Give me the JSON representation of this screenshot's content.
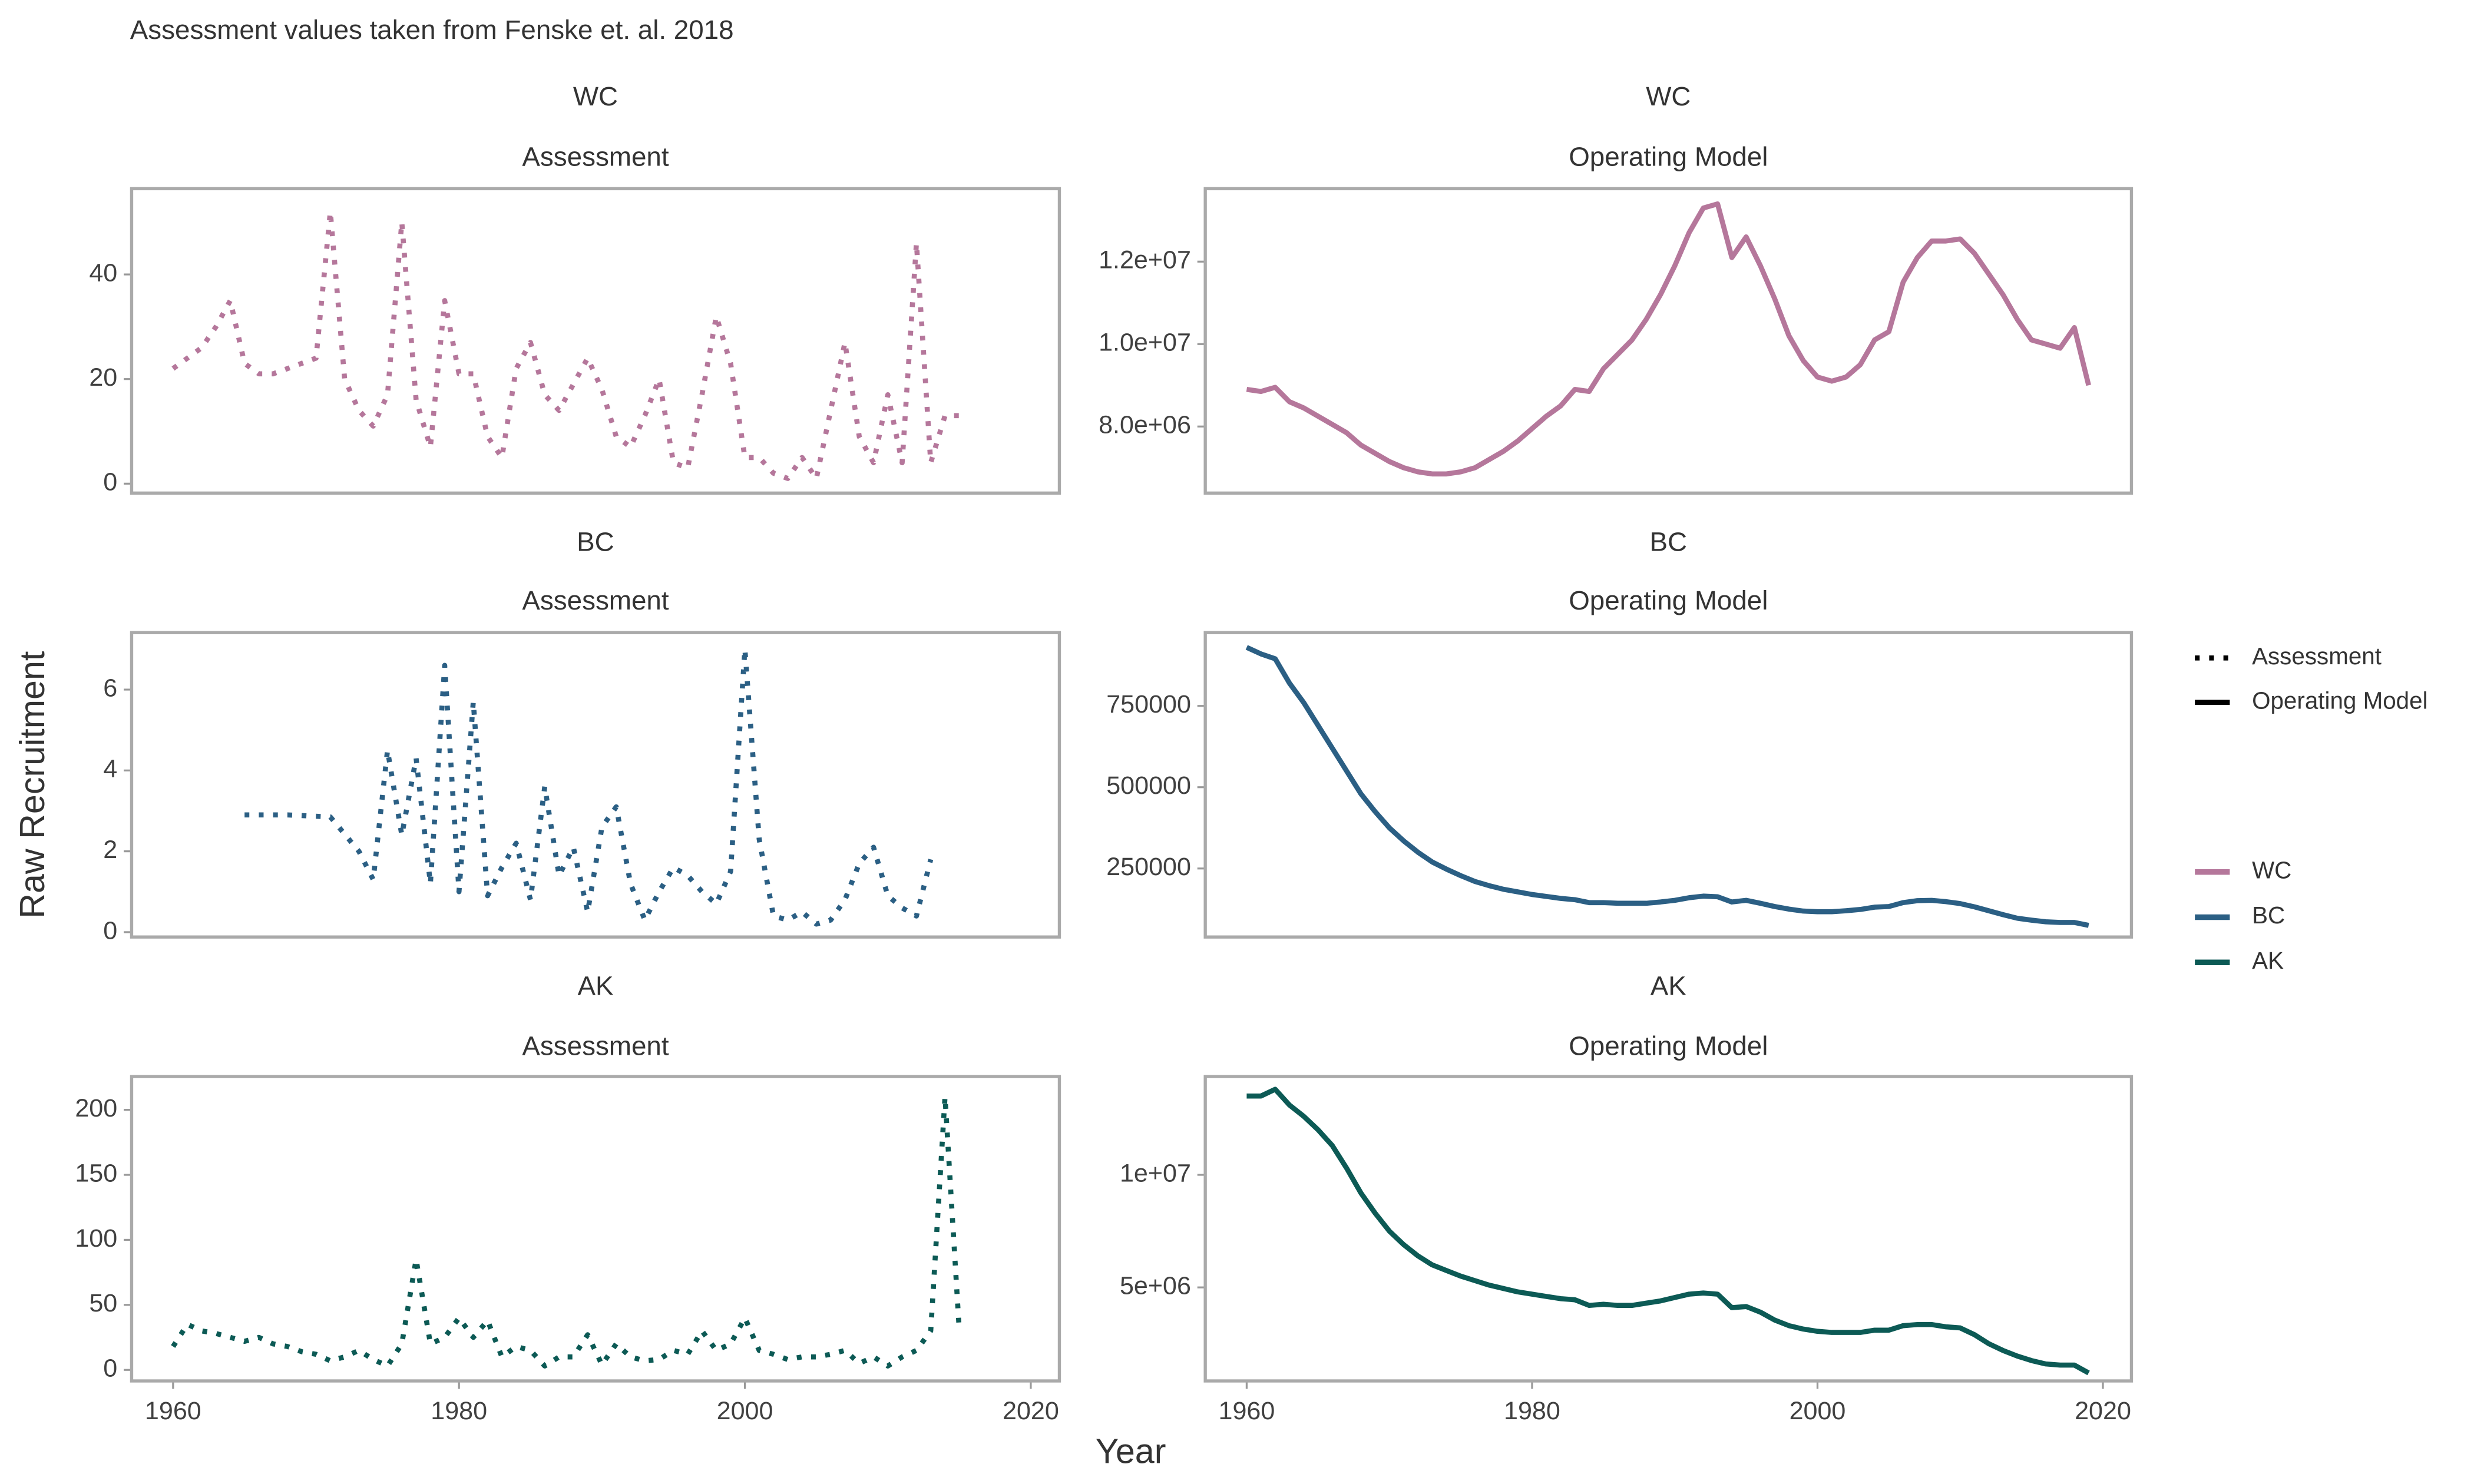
{
  "caption": "Assessment values taken from Fenske et. al. 2018",
  "xlabel": "Year",
  "ylabel": "Raw Recruitment",
  "legend": {
    "linetypes": [
      {
        "name": "Assessment",
        "linestyle": "dotted"
      },
      {
        "name": "Operating Model",
        "linestyle": "solid"
      }
    ],
    "colors": [
      {
        "name": "WC",
        "color": "#b5779b"
      },
      {
        "name": "BC",
        "color": "#2b5f84"
      },
      {
        "name": "AK",
        "color": "#0c5a55"
      }
    ]
  },
  "chart_data": [
    {
      "type": "line",
      "title": "WC",
      "subtitle": "Assessment",
      "linestyle": "dotted",
      "color": "#b5779b",
      "x": [
        1960,
        1961,
        1962,
        1963,
        1964,
        1965,
        1966,
        1967,
        1968,
        1969,
        1970,
        1971,
        1972,
        1973,
        1974,
        1975,
        1976,
        1977,
        1978,
        1979,
        1980,
        1981,
        1982,
        1983,
        1984,
        1985,
        1986,
        1987,
        1988,
        1989,
        1990,
        1991,
        1992,
        1993,
        1994,
        1995,
        1996,
        1997,
        1998,
        1999,
        2000,
        2001,
        2002,
        2003,
        2004,
        2005,
        2006,
        2007,
        2008,
        2009,
        2010,
        2011,
        2012,
        2013,
        2014,
        2015
      ],
      "values": [
        22,
        24,
        26,
        30,
        35,
        23,
        21,
        21,
        22,
        23,
        24,
        52,
        20,
        14,
        11,
        17,
        50,
        16,
        7,
        35,
        21,
        21,
        9,
        5,
        22,
        27,
        17,
        14,
        19,
        24,
        18,
        9,
        7,
        13,
        20,
        4,
        3,
        17,
        32,
        23,
        5,
        5,
        2,
        1,
        5,
        1,
        14,
        27,
        9,
        4,
        17,
        4,
        46,
        4,
        13,
        13
      ],
      "xlim": [
        1957.1,
        2022
      ],
      "ylim": [
        -1.8,
        56.4
      ],
      "yticks": [
        0,
        20,
        40
      ]
    },
    {
      "type": "line",
      "title": "WC",
      "subtitle": "Operating Model",
      "linestyle": "solid",
      "color": "#b5779b",
      "x": [
        1960,
        1961,
        1962,
        1963,
        1964,
        1965,
        1966,
        1967,
        1968,
        1969,
        1970,
        1971,
        1972,
        1973,
        1974,
        1975,
        1976,
        1977,
        1978,
        1979,
        1980,
        1981,
        1982,
        1983,
        1984,
        1985,
        1986,
        1987,
        1988,
        1989,
        1990,
        1991,
        1992,
        1993,
        1994,
        1995,
        1996,
        1997,
        1998,
        1999,
        2000,
        2001,
        2002,
        2003,
        2004,
        2005,
        2006,
        2007,
        2008,
        2009,
        2010,
        2011,
        2012,
        2013,
        2014,
        2015,
        2016,
        2017,
        2018,
        2019
      ],
      "values": [
        8900000,
        8850000,
        8950000,
        8600000,
        8450000,
        8250000,
        8050000,
        7850000,
        7550000,
        7350000,
        7150000,
        7000000,
        6900000,
        6850000,
        6850000,
        6900000,
        7000000,
        7200000,
        7400000,
        7650000,
        7950000,
        8250000,
        8500000,
        8900000,
        8850000,
        9400000,
        9750000,
        10100000,
        10600000,
        11200000,
        11900000,
        12700000,
        13300000,
        13400000,
        12100000,
        12600000,
        11900000,
        11100000,
        10200000,
        9600000,
        9200000,
        9100000,
        9200000,
        9500000,
        10100000,
        10300000,
        11500000,
        12100000,
        12500000,
        12500000,
        12550000,
        12200000,
        11700000,
        11200000,
        10600000,
        10100000,
        10000000,
        9900000,
        10400000,
        9000000
      ],
      "xlim": [
        1957.1,
        2022
      ],
      "ylim": [
        6385000,
        13770000
      ],
      "yticks": [
        {
          "value": 8000000,
          "label": "8.0e+06"
        },
        {
          "value": 10000000,
          "label": "1.0e+07"
        },
        {
          "value": 12000000,
          "label": "1.2e+07"
        }
      ]
    },
    {
      "type": "line",
      "title": "BC",
      "subtitle": "Assessment",
      "linestyle": "dotted",
      "color": "#2b5f84",
      "x": [
        1965,
        1968,
        1971,
        1973,
        1974,
        1975,
        1976,
        1977,
        1978,
        1979,
        1980,
        1981,
        1982,
        1983,
        1984,
        1985,
        1986,
        1987,
        1988,
        1989,
        1990,
        1991,
        1992,
        1993,
        1994,
        1995,
        1996,
        1997,
        1998,
        1999,
        2000,
        2001,
        2002,
        2003,
        2004,
        2005,
        2006,
        2007,
        2008,
        2009,
        2010,
        2011,
        2012,
        2013
      ],
      "values": [
        2.9,
        2.9,
        2.85,
        2.0,
        1.3,
        4.5,
        2.4,
        4.3,
        1.2,
        6.6,
        1.0,
        5.7,
        0.9,
        1.6,
        2.2,
        0.8,
        3.6,
        1.4,
        2.1,
        0.5,
        2.6,
        3.1,
        1.2,
        0.3,
        1.0,
        1.6,
        1.4,
        1.0,
        0.7,
        1.5,
        7.0,
        2.3,
        0.4,
        0.3,
        0.5,
        0.2,
        0.3,
        0.8,
        1.7,
        2.1,
        0.9,
        0.6,
        0.4,
        1.8
      ],
      "xlim": [
        1957.1,
        2022
      ],
      "ylim": [
        -0.12,
        7.41
      ],
      "yticks": [
        0,
        2,
        4,
        6
      ]
    },
    {
      "type": "line",
      "title": "BC",
      "subtitle": "Operating Model",
      "linestyle": "solid",
      "color": "#2b5f84",
      "x": [
        1960,
        1961,
        1962,
        1963,
        1964,
        1965,
        1966,
        1967,
        1968,
        1969,
        1970,
        1971,
        1972,
        1973,
        1974,
        1975,
        1976,
        1977,
        1978,
        1979,
        1980,
        1981,
        1982,
        1983,
        1984,
        1985,
        1986,
        1987,
        1988,
        1989,
        1990,
        1991,
        1992,
        1993,
        1994,
        1995,
        1996,
        1997,
        1998,
        1999,
        2000,
        2001,
        2002,
        2003,
        2004,
        2005,
        2006,
        2007,
        2008,
        2009,
        2010,
        2011,
        2012,
        2013,
        2014,
        2015,
        2016,
        2017,
        2018,
        2019
      ],
      "values": [
        930000,
        910000,
        895000,
        820000,
        760000,
        690000,
        620000,
        550000,
        480000,
        425000,
        375000,
        335000,
        300000,
        270000,
        248000,
        228000,
        210000,
        197000,
        186000,
        178000,
        170000,
        164000,
        158000,
        154000,
        145000,
        145000,
        143000,
        143000,
        143000,
        147000,
        152000,
        160000,
        165000,
        163000,
        147000,
        152000,
        143000,
        133000,
        125000,
        119000,
        117000,
        117000,
        120000,
        124000,
        131000,
        133000,
        145000,
        151000,
        152000,
        148000,
        142000,
        132000,
        120000,
        108000,
        97000,
        91000,
        86000,
        84000,
        84000,
        75000
      ],
      "xlim": [
        1957.1,
        2022
      ],
      "ylim": [
        39216,
        975490
      ],
      "yticks": [
        250000,
        500000,
        750000
      ]
    },
    {
      "type": "line",
      "title": "AK",
      "subtitle": "Assessment",
      "linestyle": "dotted",
      "color": "#0c5a55",
      "x": [
        1960,
        1961,
        1962,
        1963,
        1964,
        1965,
        1966,
        1967,
        1968,
        1969,
        1970,
        1971,
        1972,
        1973,
        1974,
        1975,
        1976,
        1977,
        1978,
        1979,
        1980,
        1981,
        1982,
        1983,
        1984,
        1985,
        1986,
        1987,
        1988,
        1989,
        1990,
        1991,
        1992,
        1993,
        1994,
        1995,
        1996,
        1997,
        1998,
        1999,
        2000,
        2001,
        2002,
        2003,
        2004,
        2005,
        2006,
        2007,
        2008,
        2009,
        2010,
        2011,
        2012,
        2013,
        2014,
        2015
      ],
      "values": [
        18,
        35,
        30,
        28,
        25,
        22,
        25,
        20,
        18,
        14,
        12,
        7,
        10,
        15,
        8,
        3,
        20,
        85,
        20,
        25,
        40,
        25,
        38,
        10,
        18,
        15,
        3,
        10,
        10,
        27,
        4,
        20,
        10,
        7,
        8,
        15,
        12,
        30,
        15,
        20,
        40,
        15,
        12,
        8,
        10,
        10,
        12,
        15,
        5,
        10,
        3,
        10,
        15,
        30,
        210,
        30
      ],
      "xlim": [
        1957.1,
        2022
      ],
      "ylim": [
        -8.5,
        225.6
      ],
      "yticks": [
        0,
        50,
        100,
        150,
        200
      ],
      "xticks": [
        1960,
        1980,
        2000,
        2020
      ]
    },
    {
      "type": "line",
      "title": "AK",
      "subtitle": "Operating Model",
      "linestyle": "solid",
      "color": "#0c5a55",
      "x": [
        1960,
        1961,
        1962,
        1963,
        1964,
        1965,
        1966,
        1967,
        1968,
        1969,
        1970,
        1971,
        1972,
        1973,
        1974,
        1975,
        1976,
        1977,
        1978,
        1979,
        1980,
        1981,
        1982,
        1983,
        1984,
        1985,
        1986,
        1987,
        1988,
        1989,
        1990,
        1991,
        1992,
        1993,
        1994,
        1995,
        1996,
        1997,
        1998,
        1999,
        2000,
        2001,
        2002,
        2003,
        2004,
        2005,
        2006,
        2007,
        2008,
        2009,
        2010,
        2011,
        2012,
        2013,
        2014,
        2015,
        2016,
        2017,
        2018,
        2019
      ],
      "values": [
        13500000,
        13500000,
        13800000,
        13100000,
        12600000,
        12000000,
        11300000,
        10300000,
        9200000,
        8300000,
        7500000,
        6900000,
        6400000,
        6000000,
        5750000,
        5500000,
        5300000,
        5100000,
        4950000,
        4800000,
        4700000,
        4600000,
        4500000,
        4450000,
        4200000,
        4250000,
        4200000,
        4200000,
        4300000,
        4400000,
        4550000,
        4700000,
        4750000,
        4700000,
        4100000,
        4150000,
        3900000,
        3550000,
        3300000,
        3150000,
        3050000,
        3000000,
        3000000,
        3000000,
        3100000,
        3100000,
        3300000,
        3350000,
        3350000,
        3250000,
        3200000,
        2900000,
        2500000,
        2200000,
        1950000,
        1750000,
        1600000,
        1550000,
        1550000,
        1200000
      ],
      "xlim": [
        1957.1,
        2022
      ],
      "ylim": [
        845000,
        14366000
      ],
      "yticks": [
        {
          "value": 5000000,
          "label": "5e+06"
        },
        {
          "value": 10000000,
          "label": "1e+07"
        }
      ],
      "xticks": [
        1960,
        1980,
        2000,
        2020
      ]
    }
  ]
}
